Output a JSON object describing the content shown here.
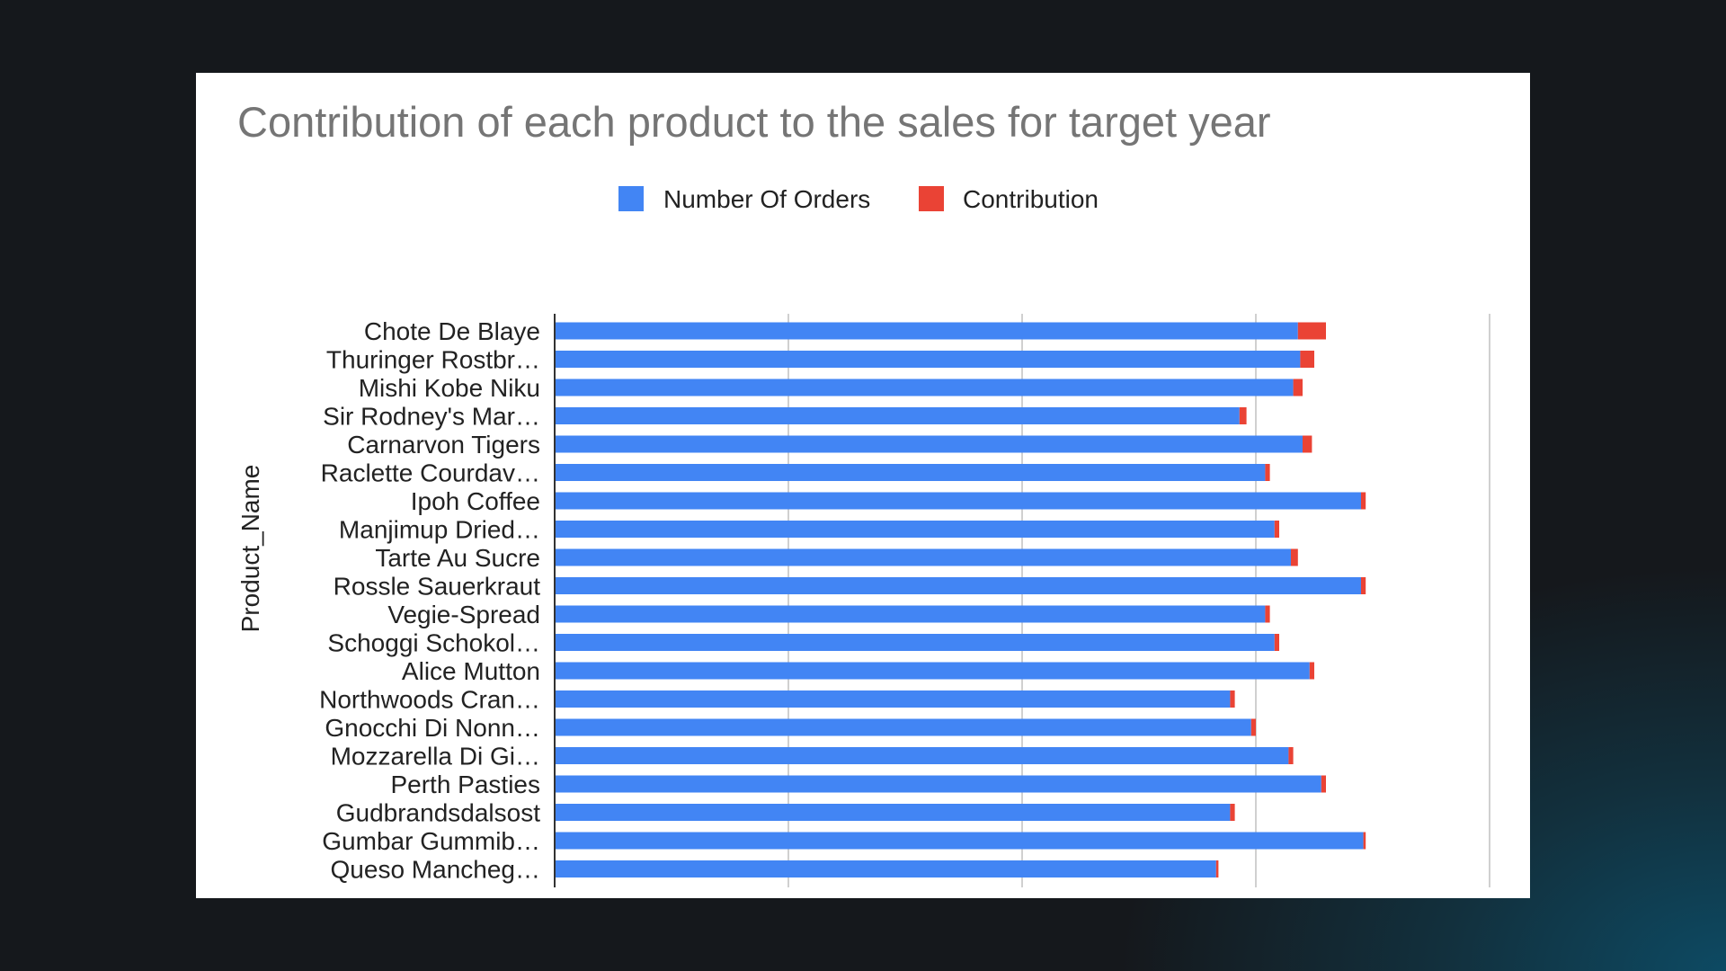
{
  "chart_data": {
    "type": "bar",
    "orientation": "horizontal",
    "stacked": true,
    "title": "Contribution of each product to the sales for target year",
    "ylabel": "Product_Name",
    "xlabel": "",
    "xlim": [
      0,
      400
    ],
    "x_ticks": [
      "0",
      "100",
      "200",
      "300",
      "400"
    ],
    "grid": true,
    "legend_position": "top",
    "categories": [
      "Chote De Blaye",
      "Thuringer Rostbr…",
      "Mishi Kobe Niku",
      "Sir Rodney's Mar…",
      "Carnarvon Tigers",
      "Raclette Courdav…",
      "Ipoh Coffee",
      "Manjimup Dried…",
      "Tarte Au Sucre",
      "Rossle Sauerkraut",
      "Vegie-Spread",
      "Schoggi Schokol…",
      "Alice Mutton",
      "Northwoods Cran…",
      "Gnocchi Di Nonn…",
      "Mozzarella Di Gi…",
      "Perth Pasties",
      "Gudbrandsdalsost",
      "Gumbar Gummib…",
      "Queso Mancheg…"
    ],
    "series": [
      {
        "name": "Number Of Orders",
        "color": "#4285f4",
        "values": [
          318,
          319,
          316,
          293,
          320,
          304,
          345,
          308,
          315,
          345,
          304,
          308,
          323,
          289,
          298,
          314,
          328,
          289,
          346,
          283
        ]
      },
      {
        "name": "Contribution",
        "color": "#ea4335",
        "values": [
          12,
          6,
          4,
          3,
          4,
          2,
          2,
          2,
          3,
          2,
          2,
          2,
          2,
          2,
          2,
          2,
          2,
          2,
          1,
          1
        ]
      }
    ]
  }
}
